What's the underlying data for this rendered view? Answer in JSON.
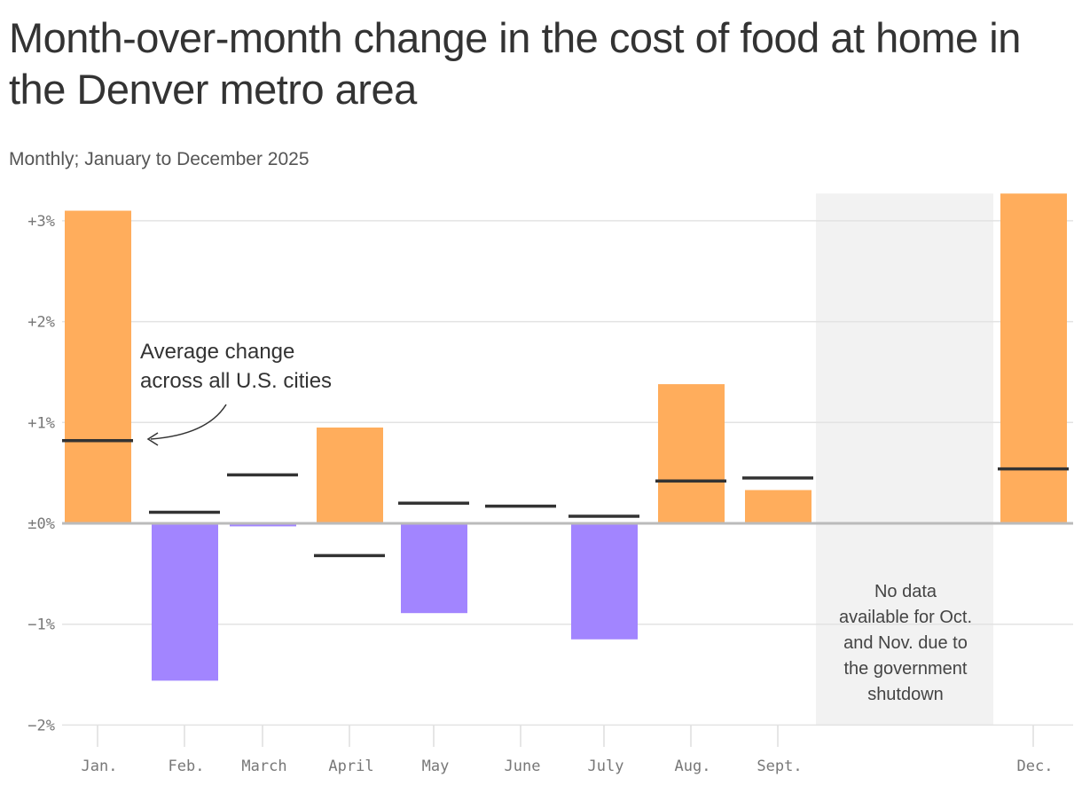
{
  "chart_data": {
    "type": "bar",
    "title": "Month-over-month change in the cost of food at home in the Denver metro area",
    "subtitle": "Monthly; January to December 2025",
    "categories": [
      "Jan.",
      "Feb.",
      "March",
      "April",
      "May",
      "June",
      "July",
      "Aug.",
      "Sept.",
      "Oct.",
      "Nov.",
      "Dec."
    ],
    "tick_labels_x": [
      "Jan.",
      "Feb.",
      "March",
      "April",
      "May",
      "June",
      "July",
      "Aug.",
      "Sept.",
      "Dec."
    ],
    "series": [
      {
        "name": "Denver",
        "values": [
          3.1,
          -1.56,
          -0.03,
          0.95,
          -0.89,
          0.01,
          -1.15,
          1.38,
          0.33,
          null,
          null,
          3.27
        ]
      },
      {
        "name": "Average change across all U.S. cities",
        "values": [
          0.82,
          0.11,
          0.48,
          -0.32,
          0.2,
          0.17,
          0.07,
          0.42,
          0.45,
          null,
          null,
          0.54
        ]
      }
    ],
    "ylim": [
      -2,
      3.27
    ],
    "yticks": [
      3,
      2,
      1,
      0,
      -1,
      -2
    ],
    "ytick_labels": [
      "+3%",
      "+2%",
      "+1%",
      "±0%",
      "−1%",
      "−2%"
    ],
    "grid": true,
    "colors": {
      "positive": "#ffad5c",
      "negative": "#a285ff",
      "average": "#333333",
      "no_data_band": "#f2f2f2"
    },
    "annotations": {
      "average": [
        "Average change",
        "across all U.S. cities"
      ],
      "no_data": [
        "No data",
        "available for Oct.",
        "and Nov. due to",
        "the government",
        "shutdown"
      ]
    }
  }
}
